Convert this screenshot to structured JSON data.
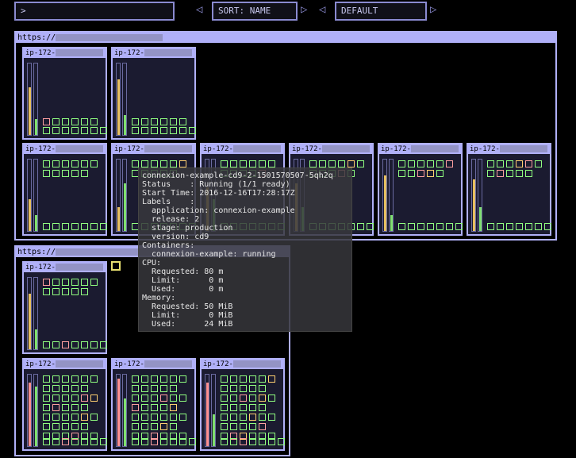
{
  "toolbar": {
    "prompt": ">",
    "sort": "SORT: NAME",
    "filter": "DEFAULT"
  },
  "clusters": [
    {
      "url": "https://",
      "nodes": [
        "ip-172-",
        "ip-172-",
        "ip-172-",
        "ip-172-",
        "ip-172-",
        "ip-172-",
        "ip-172-",
        "ip-172-"
      ]
    },
    {
      "url": "https://",
      "nodes": [
        "ip-172-",
        "ip-172-",
        "ip-172-",
        "ip-172-"
      ]
    }
  ],
  "tooltip": [
    "connexion-example-cd9-2-1501570507-5qh2q",
    "Status    : Running (1/1 ready)",
    "Start Time: 2016-12-16T17:28:17Z",
    "Labels    :",
    "  application: connexion-example",
    "  release: 2",
    "  stage: production",
    "  version: cd9",
    "Containers:",
    "  connexion-example: running",
    "CPU:",
    "  Requested: 80 m",
    "  Limit:      0 m",
    "  Used:       0 m",
    "Memory:",
    "  Requested: 50 MiB",
    "  Limit:      0 MiB",
    "  Used:      24 MiB"
  ]
}
